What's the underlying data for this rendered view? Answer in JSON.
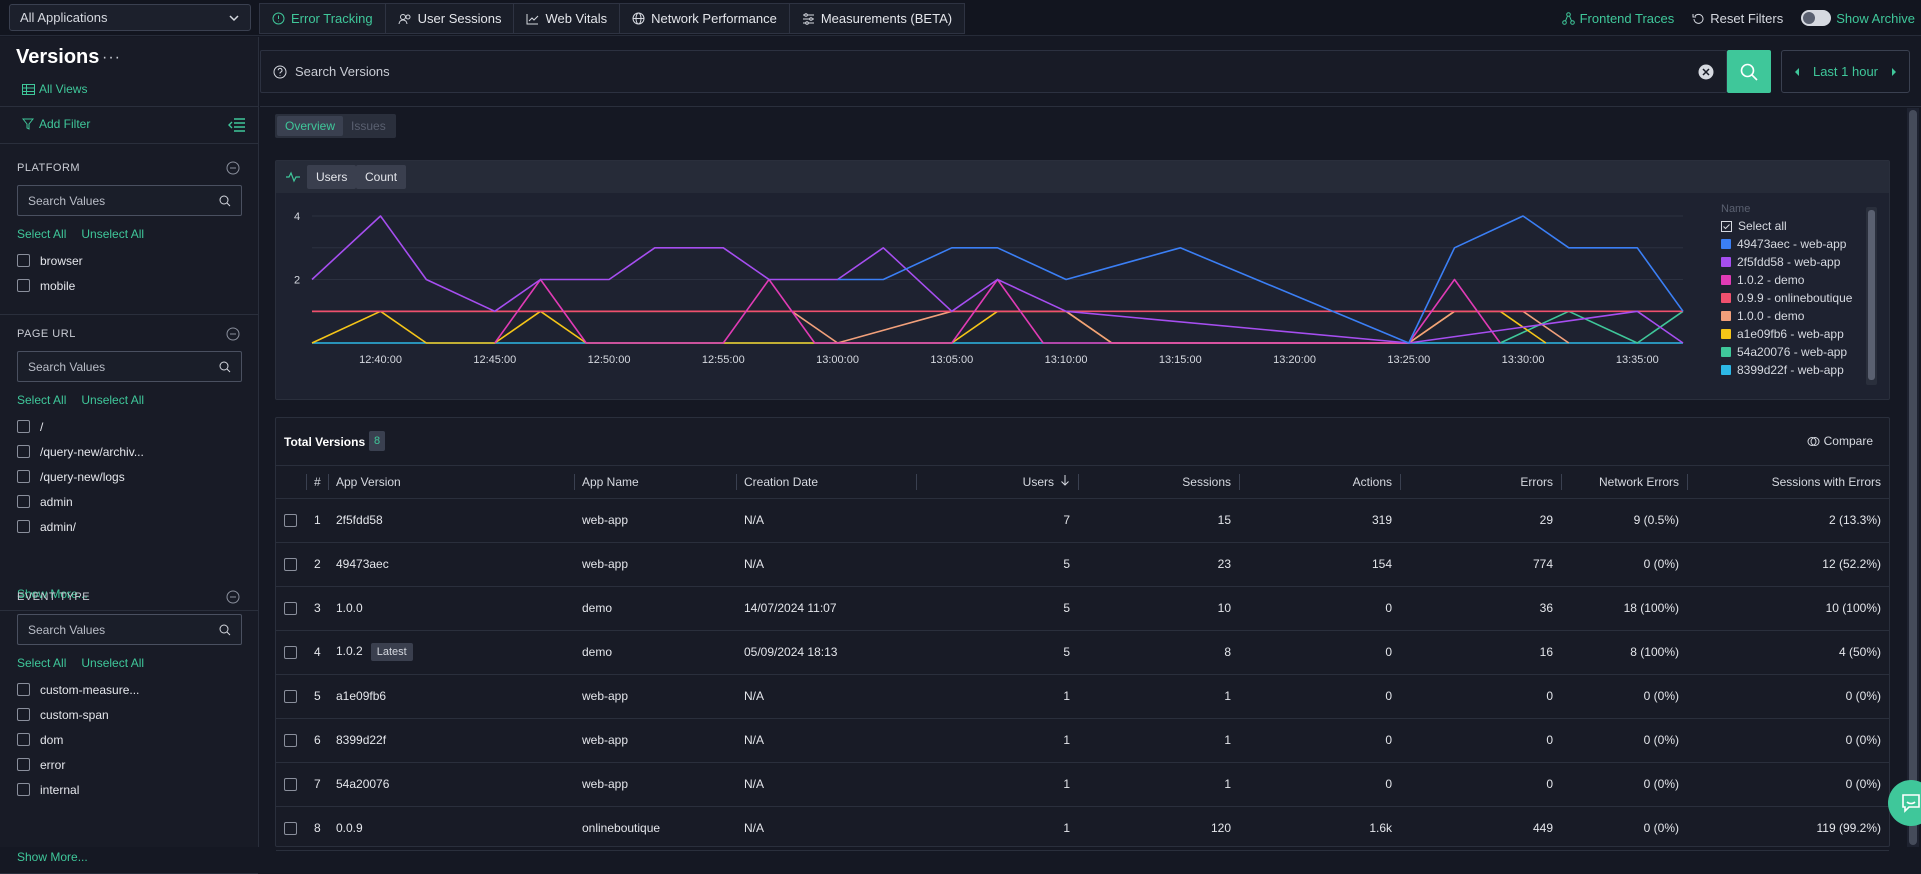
{
  "topbar": {
    "app_select": "All Applications",
    "tabs": [
      {
        "label": "Error Tracking",
        "icon": "alert-circle-icon"
      },
      {
        "label": "User Sessions",
        "icon": "users-icon"
      },
      {
        "label": "Web Vitals",
        "icon": "line-chart-icon"
      },
      {
        "label": "Network Performance",
        "icon": "globe-icon"
      },
      {
        "label": "Measurements (BETA)",
        "icon": "sliders-icon"
      }
    ],
    "frontend_traces": "Frontend Traces",
    "reset_filters": "Reset Filters",
    "show_archive": "Show Archive"
  },
  "sidebar": {
    "title": "Versions",
    "more": "···",
    "all_views": "All Views",
    "add_filter": "Add Filter",
    "sections": [
      {
        "title": "PLATFORM",
        "placeholder": "Search Values",
        "select_all": "Select All",
        "unselect_all": "Unselect All",
        "options": [
          "browser",
          "mobile"
        ]
      },
      {
        "title": "PAGE URL",
        "placeholder": "Search Values",
        "select_all": "Select All",
        "unselect_all": "Unselect All",
        "options": [
          "/",
          "/query-new/archiv...",
          "/query-new/logs",
          "admin",
          "admin/"
        ],
        "show_more": "Show More..."
      },
      {
        "title": "EVENT TYPE",
        "placeholder": "Search Values",
        "select_all": "Select All",
        "unselect_all": "Unselect All",
        "options": [
          "custom-measure...",
          "custom-span",
          "dom",
          "error",
          "internal"
        ],
        "show_more": "Show More..."
      }
    ]
  },
  "search": {
    "placeholder": "Search Versions",
    "time_range": "Last 1 hour"
  },
  "subtabs": [
    "Overview",
    "Issues"
  ],
  "chart_panel": {
    "mode_users": "Users",
    "mode_count": "Count",
    "legend_title": "Name",
    "select_all": "Select all"
  },
  "chart_data": {
    "type": "line",
    "x": [
      "12:37",
      "12:40",
      "12:42",
      "12:45",
      "12:47",
      "12:50",
      "12:52",
      "12:55",
      "12:57",
      "13:00",
      "13:02",
      "13:05",
      "13:07",
      "13:10",
      "13:12",
      "13:15",
      "13:25",
      "13:27",
      "13:30",
      "13:32",
      "13:35",
      "13:37"
    ],
    "x_ticks": [
      "12:40:00",
      "12:45:00",
      "12:50:00",
      "12:55:00",
      "13:00:00",
      "13:05:00",
      "13:10:00",
      "13:15:00",
      "13:20:00",
      "13:25:00",
      "13:30:00",
      "13:35:00"
    ],
    "ylim": [
      0,
      4
    ],
    "y_ticks": [
      2,
      4
    ],
    "grid": true,
    "legend_position": "right",
    "series": [
      {
        "name": "49473aec - web-app",
        "color": "#3b7ff5",
        "points": [
          [
            "13:00",
            2
          ],
          [
            "13:02",
            2
          ],
          [
            "13:05",
            3
          ],
          [
            "13:07",
            3
          ],
          [
            "13:10",
            2
          ],
          [
            "13:15",
            3
          ],
          [
            "13:25",
            0
          ],
          [
            "13:27",
            3
          ],
          [
            "13:30",
            4
          ],
          [
            "13:32",
            3
          ],
          [
            "13:35",
            3
          ],
          [
            "13:37",
            1
          ]
        ]
      },
      {
        "name": "2f5fdd58 - web-app",
        "color": "#a64ef0",
        "points": [
          [
            "12:37",
            2
          ],
          [
            "12:40",
            4
          ],
          [
            "12:42",
            2
          ],
          [
            "12:45",
            1
          ],
          [
            "12:47",
            2
          ],
          [
            "12:50",
            2
          ],
          [
            "12:52",
            3
          ],
          [
            "12:55",
            3
          ],
          [
            "12:57",
            2
          ],
          [
            "13:00",
            2
          ],
          [
            "13:02",
            3
          ],
          [
            "13:05",
            1
          ],
          [
            "13:07",
            2
          ],
          [
            "13:10",
            1
          ],
          [
            "13:25",
            0
          ],
          [
            "13:35",
            1
          ],
          [
            "13:37",
            0
          ]
        ]
      },
      {
        "name": "1.0.2 - demo",
        "color": "#e03bb5",
        "points": [
          [
            "12:45",
            0
          ],
          [
            "12:47",
            2
          ],
          [
            "12:49",
            0
          ],
          [
            "12:55",
            0
          ],
          [
            "12:57",
            2
          ],
          [
            "12:59",
            0
          ],
          [
            "13:05",
            0
          ],
          [
            "13:07",
            2
          ],
          [
            "13:09",
            0
          ],
          [
            "13:25",
            0
          ],
          [
            "13:27",
            2
          ],
          [
            "13:29",
            0
          ]
        ]
      },
      {
        "name": "0.9.9 - onlineboutique",
        "color": "#f0506e",
        "points": [
          [
            "12:37",
            1
          ],
          [
            "13:37",
            1
          ]
        ]
      },
      {
        "name": "1.0.0 - demo",
        "color": "#f2a07b",
        "points": [
          [
            "12:37",
            1
          ],
          [
            "12:58",
            1
          ],
          [
            "13:00",
            0
          ],
          [
            "13:05",
            1
          ],
          [
            "13:10",
            1
          ],
          [
            "13:12",
            0
          ],
          [
            "13:25",
            0
          ],
          [
            "13:27",
            1
          ],
          [
            "13:30",
            1
          ],
          [
            "13:32",
            0
          ]
        ]
      },
      {
        "name": "a1e09fb6 - web-app",
        "color": "#f5c518",
        "points": [
          [
            "12:37",
            0
          ],
          [
            "12:40",
            1
          ],
          [
            "12:42",
            0
          ],
          [
            "12:45",
            0
          ],
          [
            "12:47",
            1
          ],
          [
            "12:49",
            0
          ],
          [
            "13:05",
            0
          ],
          [
            "13:07",
            1
          ],
          [
            "13:10",
            1
          ],
          [
            "13:12",
            0
          ],
          [
            "13:25",
            0
          ],
          [
            "13:27",
            1
          ],
          [
            "13:29",
            1
          ],
          [
            "13:31",
            0
          ]
        ]
      },
      {
        "name": "54a20076 - web-app",
        "color": "#3fc79a",
        "points": [
          [
            "13:29",
            0
          ],
          [
            "13:32",
            1
          ],
          [
            "13:35",
            0
          ],
          [
            "13:37",
            1
          ]
        ]
      },
      {
        "name": "8399d22f - web-app",
        "color": "#2db8e6",
        "points": [
          [
            "12:37",
            0
          ],
          [
            "13:37",
            0
          ]
        ]
      }
    ]
  },
  "table": {
    "title": "Total Versions",
    "count": "8",
    "compare": "Compare",
    "columns": [
      "#",
      "App Version",
      "App Name",
      "Creation Date",
      "Users",
      "Sessions",
      "Actions",
      "Errors",
      "Network Errors",
      "Sessions with Errors"
    ],
    "latest_badge": "Latest",
    "rows": [
      [
        "1",
        "2f5fdd58",
        "web-app",
        "N/A",
        "7",
        "15",
        "319",
        "29",
        "9 (0.5%)",
        "2 (13.3%)"
      ],
      [
        "2",
        "49473aec",
        "web-app",
        "N/A",
        "5",
        "23",
        "154",
        "774",
        "0 (0%)",
        "12 (52.2%)"
      ],
      [
        "3",
        "1.0.0",
        "demo",
        "14/07/2024 11:07",
        "5",
        "10",
        "0",
        "36",
        "18 (100%)",
        "10 (100%)"
      ],
      [
        "4",
        "1.0.2",
        "demo",
        "05/09/2024 18:13",
        "5",
        "8",
        "0",
        "16",
        "8 (100%)",
        "4 (50%)"
      ],
      [
        "5",
        "a1e09fb6",
        "web-app",
        "N/A",
        "1",
        "1",
        "0",
        "0",
        "0 (0%)",
        "0 (0%)"
      ],
      [
        "6",
        "8399d22f",
        "web-app",
        "N/A",
        "1",
        "1",
        "0",
        "0",
        "0 (0%)",
        "0 (0%)"
      ],
      [
        "7",
        "54a20076",
        "web-app",
        "N/A",
        "1",
        "1",
        "0",
        "0",
        "0 (0%)",
        "0 (0%)"
      ],
      [
        "8",
        "0.0.9",
        "onlineboutique",
        "N/A",
        "1",
        "120",
        "1.6k",
        "449",
        "0 (0%)",
        "119 (99.2%)"
      ]
    ]
  }
}
